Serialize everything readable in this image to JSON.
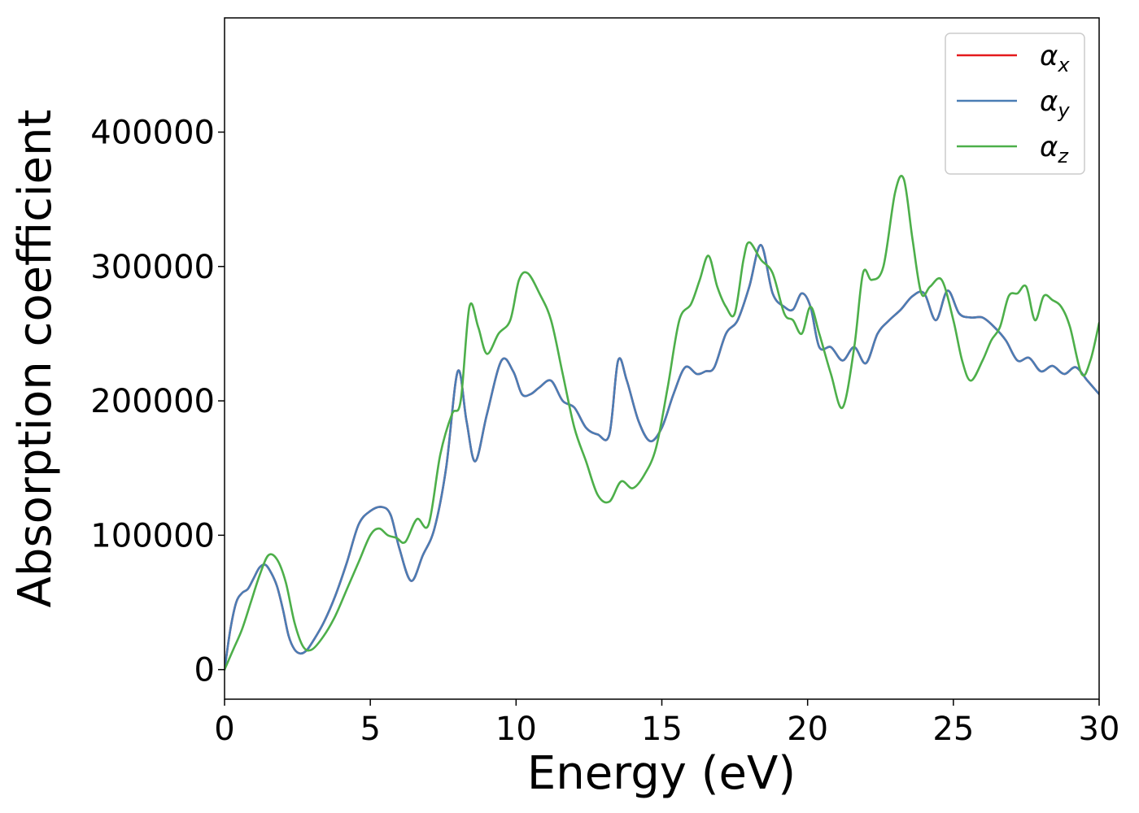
{
  "chart_data": {
    "type": "line",
    "title": "",
    "xlabel": "Energy (eV)",
    "ylabel": "Absorption coefficient",
    "xlim": [
      0,
      30
    ],
    "ylim": [
      -22000,
      485000
    ],
    "xticks": [
      0,
      5,
      10,
      15,
      20,
      25,
      30
    ],
    "xtick_labels": [
      "0",
      "5",
      "10",
      "15",
      "20",
      "25",
      "30"
    ],
    "yticks": [
      0,
      100000,
      200000,
      300000,
      400000
    ],
    "ytick_labels": [
      "0",
      "100000",
      "200000",
      "300000",
      "400000"
    ],
    "grid": false,
    "legend_position": "top-right",
    "colors": {
      "alpha_x": "#e41a1c",
      "alpha_y": "#4a7db5",
      "alpha_z": "#4daf4a"
    },
    "series": [
      {
        "name": "α_x",
        "legend_base": "α",
        "legend_sub": "x",
        "color": "#e41a1c",
        "x": [
          0,
          0.2,
          0.4,
          0.6,
          0.8,
          1.0,
          1.2,
          1.4,
          1.6,
          1.8,
          2.0,
          2.2,
          2.4,
          2.6,
          2.8,
          3.0,
          3.4,
          3.8,
          4.2,
          4.6,
          5.0,
          5.4,
          5.7,
          6.0,
          6.4,
          6.8,
          7.2,
          7.6,
          8.0,
          8.3,
          8.6,
          9.0,
          9.5,
          9.9,
          10.2,
          10.5,
          10.8,
          11.2,
          11.6,
          12.0,
          12.4,
          12.8,
          13.2,
          13.5,
          13.8,
          14.2,
          14.6,
          15.0,
          15.4,
          15.8,
          16.2,
          16.5,
          16.8,
          17.2,
          17.6,
          18.0,
          18.4,
          18.8,
          19.2,
          19.5,
          19.8,
          20.1,
          20.4,
          20.8,
          21.2,
          21.6,
          22.0,
          22.4,
          22.8,
          23.2,
          23.6,
          24.0,
          24.4,
          24.8,
          25.2,
          25.6,
          26.0,
          26.4,
          26.8,
          27.2,
          27.6,
          28.0,
          28.4,
          28.8,
          29.2,
          29.6,
          30.0
        ],
        "values": [
          0,
          30000,
          50000,
          57000,
          60000,
          68000,
          76000,
          78000,
          72000,
          62000,
          45000,
          25000,
          15000,
          12000,
          14000,
          20000,
          35000,
          55000,
          80000,
          108000,
          118000,
          121000,
          115000,
          90000,
          66000,
          85000,
          105000,
          150000,
          222000,
          185000,
          155000,
          190000,
          230000,
          222000,
          205000,
          205000,
          210000,
          215000,
          200000,
          195000,
          180000,
          175000,
          175000,
          230000,
          215000,
          185000,
          170000,
          180000,
          205000,
          225000,
          220000,
          222000,
          225000,
          250000,
          260000,
          285000,
          316000,
          280000,
          270000,
          268000,
          280000,
          270000,
          240000,
          240000,
          230000,
          240000,
          228000,
          250000,
          260000,
          268000,
          278000,
          280000,
          260000,
          282000,
          265000,
          262000,
          262000,
          255000,
          245000,
          230000,
          232000,
          222000,
          226000,
          220000,
          225000,
          215000,
          205000
        ]
      },
      {
        "name": "α_y",
        "legend_base": "α",
        "legend_sub": "y",
        "color": "#4a7db5",
        "x": [
          0,
          0.2,
          0.4,
          0.6,
          0.8,
          1.0,
          1.2,
          1.4,
          1.6,
          1.8,
          2.0,
          2.2,
          2.4,
          2.6,
          2.8,
          3.0,
          3.4,
          3.8,
          4.2,
          4.6,
          5.0,
          5.4,
          5.7,
          6.0,
          6.4,
          6.8,
          7.2,
          7.6,
          8.0,
          8.3,
          8.6,
          9.0,
          9.5,
          9.9,
          10.2,
          10.5,
          10.8,
          11.2,
          11.6,
          12.0,
          12.4,
          12.8,
          13.2,
          13.5,
          13.8,
          14.2,
          14.6,
          15.0,
          15.4,
          15.8,
          16.2,
          16.5,
          16.8,
          17.2,
          17.6,
          18.0,
          18.4,
          18.8,
          19.2,
          19.5,
          19.8,
          20.1,
          20.4,
          20.8,
          21.2,
          21.6,
          22.0,
          22.4,
          22.8,
          23.2,
          23.6,
          24.0,
          24.4,
          24.8,
          25.2,
          25.6,
          26.0,
          26.4,
          26.8,
          27.2,
          27.6,
          28.0,
          28.4,
          28.8,
          29.2,
          29.6,
          30.0
        ],
        "values": [
          0,
          30000,
          50000,
          57000,
          60000,
          68000,
          76000,
          78000,
          72000,
          62000,
          45000,
          25000,
          15000,
          12000,
          14000,
          20000,
          35000,
          55000,
          80000,
          108000,
          118000,
          121000,
          115000,
          90000,
          66000,
          85000,
          105000,
          150000,
          222000,
          185000,
          155000,
          190000,
          230000,
          222000,
          205000,
          205000,
          210000,
          215000,
          200000,
          195000,
          180000,
          175000,
          175000,
          230000,
          215000,
          185000,
          170000,
          180000,
          205000,
          225000,
          220000,
          222000,
          225000,
          250000,
          260000,
          285000,
          316000,
          280000,
          270000,
          268000,
          280000,
          270000,
          240000,
          240000,
          230000,
          240000,
          228000,
          250000,
          260000,
          268000,
          278000,
          280000,
          260000,
          282000,
          265000,
          262000,
          262000,
          255000,
          245000,
          230000,
          232000,
          222000,
          226000,
          220000,
          225000,
          215000,
          205000
        ]
      },
      {
        "name": "α_z",
        "legend_base": "α",
        "legend_sub": "z",
        "color": "#4daf4a",
        "x": [
          0,
          0.3,
          0.6,
          0.9,
          1.2,
          1.5,
          1.8,
          2.1,
          2.4,
          2.7,
          3.0,
          3.4,
          3.8,
          4.2,
          4.6,
          5.0,
          5.3,
          5.6,
          5.9,
          6.2,
          6.6,
          7.0,
          7.4,
          7.8,
          8.1,
          8.4,
          8.7,
          9.0,
          9.4,
          9.8,
          10.1,
          10.4,
          10.8,
          11.2,
          11.6,
          12.0,
          12.4,
          12.8,
          13.2,
          13.6,
          14.0,
          14.4,
          14.8,
          15.2,
          15.6,
          16.0,
          16.3,
          16.6,
          16.9,
          17.2,
          17.5,
          17.8,
          18.0,
          18.4,
          18.8,
          19.2,
          19.5,
          19.8,
          20.1,
          20.4,
          20.8,
          21.2,
          21.6,
          21.9,
          22.2,
          22.6,
          23.0,
          23.3,
          23.6,
          23.9,
          24.2,
          24.6,
          25.0,
          25.3,
          25.6,
          26.0,
          26.3,
          26.6,
          26.9,
          27.2,
          27.5,
          27.8,
          28.1,
          28.4,
          28.7,
          29.0,
          29.4,
          29.7,
          30.0
        ],
        "values": [
          0,
          15000,
          30000,
          50000,
          70000,
          85000,
          82000,
          65000,
          35000,
          17000,
          15000,
          25000,
          40000,
          60000,
          80000,
          100000,
          105000,
          100000,
          98000,
          95000,
          112000,
          108000,
          160000,
          190000,
          200000,
          270000,
          255000,
          235000,
          250000,
          260000,
          290000,
          295000,
          280000,
          260000,
          220000,
          180000,
          155000,
          130000,
          125000,
          140000,
          135000,
          145000,
          165000,
          210000,
          260000,
          272000,
          290000,
          308000,
          285000,
          270000,
          265000,
          305000,
          318000,
          305000,
          295000,
          265000,
          260000,
          250000,
          270000,
          250000,
          220000,
          195000,
          240000,
          295000,
          290000,
          300000,
          355000,
          365000,
          320000,
          280000,
          285000,
          290000,
          260000,
          230000,
          215000,
          230000,
          245000,
          255000,
          278000,
          280000,
          285000,
          260000,
          278000,
          275000,
          270000,
          255000,
          220000,
          230000,
          258000
        ]
      }
    ]
  }
}
